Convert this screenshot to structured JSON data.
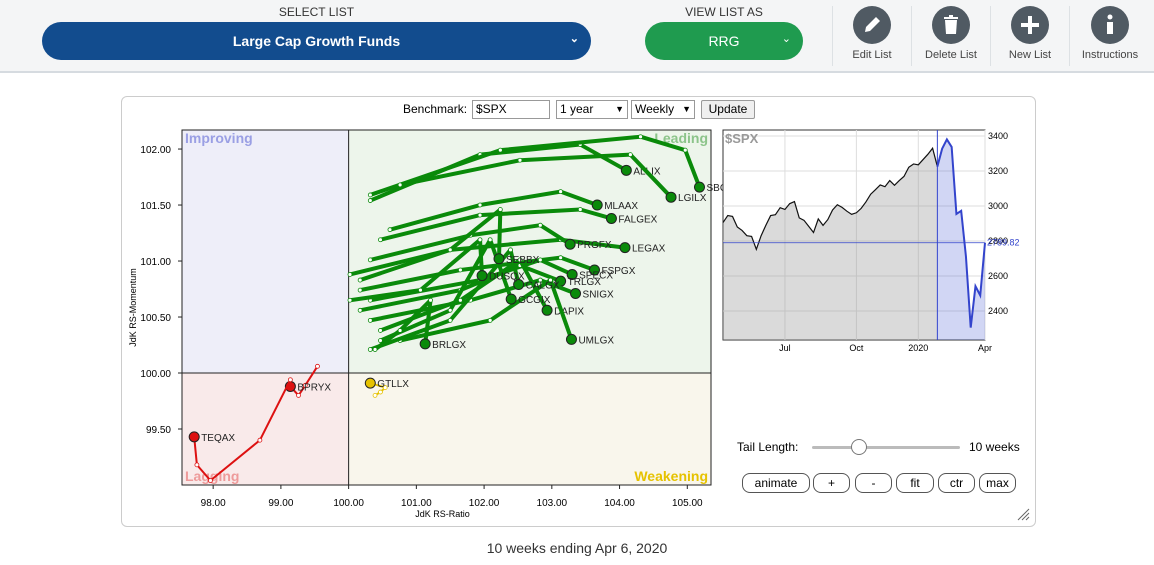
{
  "header": {
    "select_list_label": "SELECT LIST",
    "select_list_value": "Large Cap Growth Funds",
    "view_as_label": "VIEW LIST AS",
    "view_as_value": "RRG",
    "buttons": [
      "Edit List",
      "Delete List",
      "New List",
      "Instructions"
    ]
  },
  "controls": {
    "benchmark_label": "Benchmark:",
    "benchmark": "$SPX",
    "period": "1 year",
    "frequency": "Weekly",
    "update": "Update",
    "tail_length_label": "Tail Length:",
    "tail_length": 10,
    "tail_length_text": "10 weeks",
    "buttons": [
      "animate",
      "+",
      "-",
      "fit",
      "ctr",
      "max"
    ]
  },
  "chart_data": [
    {
      "type": "rrg",
      "x_label": "JdK RS-Ratio",
      "y_label": "JdK RS-Momentum",
      "xlim": [
        97.54,
        105.35
      ],
      "ylim": [
        99.0,
        102.17
      ],
      "center": [
        100,
        100
      ],
      "xticks": [
        {
          "value": 98,
          "label": "98.00"
        },
        {
          "value": 99,
          "label": "99.00"
        },
        {
          "value": 100,
          "label": "100.00"
        },
        {
          "value": 101,
          "label": "101.00"
        },
        {
          "value": 102,
          "label": "102.00"
        },
        {
          "value": 103,
          "label": "103.00"
        },
        {
          "value": 104,
          "label": "104.00"
        },
        {
          "value": 105,
          "label": "105.00"
        }
      ],
      "yticks": [
        {
          "value": 99.5,
          "label": "99.50"
        },
        {
          "value": 100,
          "label": "100.00"
        },
        {
          "value": 100.5,
          "label": "100.50"
        },
        {
          "value": 101,
          "label": "101.00"
        },
        {
          "value": 101.5,
          "label": "101.50"
        },
        {
          "value": 102,
          "label": "102.00"
        }
      ],
      "quadrants": [
        {
          "name": "Improving",
          "corner": "top-left",
          "color": "#9a9fe4",
          "fill": "#eeeef9"
        },
        {
          "name": "Leading",
          "corner": "top-right",
          "color": "#8cc48a",
          "fill": "#edf5eb"
        },
        {
          "name": "Lagging",
          "corner": "bottom-left",
          "color": "#ee9a9a",
          "fill": "#f9eaea"
        },
        {
          "name": "Weakening",
          "corner": "bottom-right",
          "color": "#e6c200",
          "fill": "#f9f6ec"
        }
      ],
      "tail_color": "#0a8a0a",
      "series": [
        {
          "name": "ALLIX",
          "color": "#0a8a0a",
          "x": [
            100.32,
            101.94,
            103.42,
            104.1
          ],
          "y": [
            101.54,
            101.95,
            102.04,
            101.81
          ]
        },
        {
          "name": "SBGSX",
          "color": "#0a8a0a",
          "x": [
            100.32,
            102.24,
            104.31,
            104.97,
            105.18
          ],
          "y": [
            101.59,
            101.99,
            102.11,
            101.99,
            101.66
          ]
        },
        {
          "name": "LGILX",
          "color": "#0a8a0a",
          "x": [
            100.76,
            102.53,
            104.16,
            104.76
          ],
          "y": [
            101.68,
            101.9,
            101.95,
            101.57
          ]
        },
        {
          "name": "MLAAX",
          "color": "#0a8a0a",
          "x": [
            100.61,
            101.94,
            103.13,
            103.67
          ],
          "y": [
            101.28,
            101.5,
            101.62,
            101.5
          ]
        },
        {
          "name": "FALGEX",
          "color": "#0a8a0a",
          "x": [
            100.47,
            101.94,
            103.42,
            103.88
          ],
          "y": [
            101.19,
            101.41,
            101.46,
            101.38
          ]
        },
        {
          "name": "LEGAX",
          "color": "#0a8a0a",
          "x": [
            100.02,
            101.5,
            103.13,
            104.08
          ],
          "y": [
            100.88,
            101.1,
            101.19,
            101.12
          ]
        },
        {
          "name": "PRGFX",
          "color": "#0a8a0a",
          "x": [
            100.32,
            101.8,
            102.83,
            103.27
          ],
          "y": [
            101.01,
            101.23,
            101.32,
            101.15
          ]
        },
        {
          "name": "FSPGX",
          "color": "#0a8a0a",
          "x": [
            100.17,
            101.65,
            103.13,
            103.63
          ],
          "y": [
            100.74,
            100.92,
            101.03,
            100.92
          ]
        },
        {
          "name": "SPECX",
          "color": "#0a8a0a",
          "x": [
            100.32,
            101.94,
            102.83,
            103.3
          ],
          "y": [
            100.65,
            100.83,
            101.01,
            100.88
          ]
        },
        {
          "name": "TRLGX",
          "color": "#0a8a0a",
          "x": [
            100.17,
            101.65,
            102.53,
            103.13
          ],
          "y": [
            100.56,
            100.74,
            100.96,
            100.82
          ]
        },
        {
          "name": "SNIGX",
          "color": "#0a8a0a",
          "x": [
            100.32,
            101.8,
            102.83,
            103.35
          ],
          "y": [
            100.47,
            100.65,
            100.83,
            100.71
          ]
        },
        {
          "name": "DAPIX",
          "color": "#0a8a0a",
          "x": [
            100.47,
            101.65,
            102.53,
            102.93
          ],
          "y": [
            100.38,
            100.65,
            101.01,
            100.56
          ]
        },
        {
          "name": "UMLGX",
          "color": "#0a8a0a",
          "x": [
            100.76,
            102.09,
            102.98,
            103.29
          ],
          "y": [
            100.29,
            100.47,
            100.83,
            100.3
          ]
        },
        {
          "name": "GCGIX",
          "color": "#0a8a0a",
          "x": [
            100.47,
            101.5,
            102.09,
            102.4
          ],
          "y": [
            100.29,
            100.56,
            101.19,
            100.66
          ]
        },
        {
          "name": "CALGX",
          "color": "#0a8a0a",
          "x": [
            100.32,
            101.5,
            102.39,
            102.51
          ],
          "y": [
            100.21,
            100.47,
            101.1,
            100.79
          ]
        },
        {
          "name": "DUSQX",
          "color": "#0a8a0a",
          "x": [
            100.02,
            101.06,
            101.94,
            101.97
          ],
          "y": [
            100.65,
            100.74,
            101.19,
            100.87
          ]
        },
        {
          "name": "SEBBX",
          "color": "#0a8a0a",
          "x": [
            100.17,
            101.5,
            102.24,
            102.22
          ],
          "y": [
            100.83,
            101.1,
            101.46,
            101.02
          ]
        },
        {
          "name": "BRLGX",
          "color": "#0a8a0a",
          "x": [
            100.39,
            100.76,
            101.21,
            101.13
          ],
          "y": [
            100.21,
            100.38,
            100.65,
            100.26
          ]
        },
        {
          "name": "GTLLX",
          "color": "#e6c200",
          "x": [
            100.39,
            100.47,
            100.54,
            100.32
          ],
          "y": [
            99.8,
            99.83,
            99.87,
            99.91
          ]
        },
        {
          "name": "BPRYX",
          "color": "#dd1111",
          "x": [
            99.54,
            99.36,
            99.26,
            99.14
          ],
          "y": [
            100.06,
            99.89,
            99.8,
            99.88
          ]
        },
        {
          "name": "TEQAX",
          "color": "#dd1111",
          "x": [
            99.14,
            98.69,
            97.96,
            97.76,
            97.72
          ],
          "y": [
            99.94,
            99.4,
            99.04,
            99.18,
            99.43
          ]
        }
      ]
    },
    {
      "type": "line",
      "title": "$SPX",
      "color": "#111111",
      "tail_color": "#3344cc",
      "x": [
        0,
        1,
        2,
        3,
        4,
        5,
        6,
        7,
        8,
        9,
        10,
        11,
        12,
        13,
        14,
        15,
        16,
        17,
        18,
        19,
        20,
        21,
        22,
        23,
        24,
        25,
        26,
        27,
        28,
        29,
        30,
        31,
        32,
        33,
        34,
        35,
        36,
        37,
        38,
        39,
        40,
        41,
        42,
        43,
        44,
        45,
        46,
        47,
        48,
        49,
        50,
        51,
        52,
        53,
        54,
        55
      ],
      "values": [
        2905,
        2945,
        2940,
        2880,
        2860,
        2830,
        2826,
        2752,
        2830,
        2890,
        2945,
        2950,
        2990,
        2980,
        3013,
        3025,
        2932,
        2918,
        2883,
        2848,
        2926,
        2889,
        2922,
        2977,
        3007,
        2992,
        2970,
        2952,
        2961,
        2986,
        3023,
        3067,
        3093,
        3120,
        3110,
        3145,
        3118,
        3145,
        3169,
        3221,
        3240,
        3235,
        3265,
        3295,
        3330,
        3225,
        3327,
        3380,
        3337,
        2954,
        2972,
        2711,
        2305,
        2541,
        2489,
        2789.82
      ],
      "xlim": [
        0,
        55
      ],
      "ylim": [
        2234,
        3434
      ],
      "xticks": [
        {
          "value": 13,
          "label": "Jul"
        },
        {
          "value": 28,
          "label": "Oct"
        },
        {
          "value": 41,
          "label": "2020"
        },
        {
          "value": 55,
          "label": "Apr"
        }
      ],
      "yticks": [
        2400,
        2600,
        2800,
        3000,
        3200,
        3400
      ],
      "grid": true
    }
  ],
  "footer": "10 weeks ending Apr 6, 2020"
}
